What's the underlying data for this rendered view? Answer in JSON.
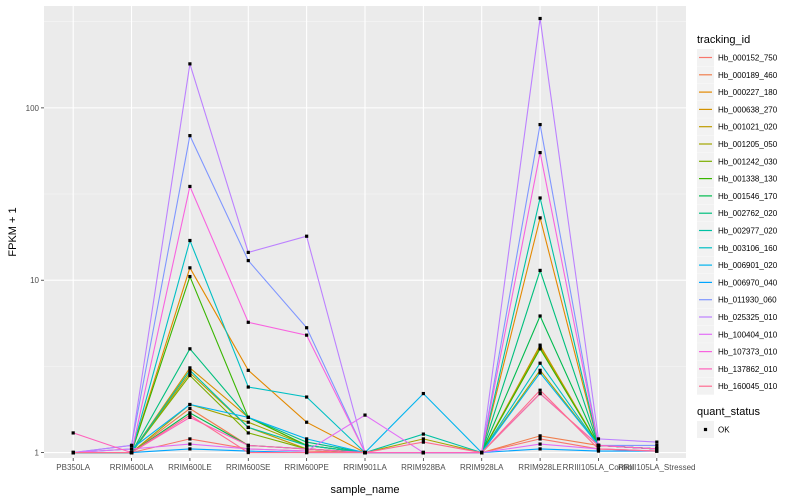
{
  "chart_data": {
    "type": "line",
    "xlabel": "sample_name",
    "ylabel": "FPKM + 1",
    "y_scale": "log10",
    "ylim": [
      0.93,
      390
    ],
    "y_ticks": [
      1,
      10,
      100
    ],
    "y_tick_labels": [
      "1",
      "10",
      "100"
    ],
    "grid": true,
    "categories": [
      "PB350LA",
      "RRIM600LA",
      "RRIM600LE",
      "RRIM600SE",
      "RRIM600PE",
      "RRIM901LA",
      "RRIM928BA",
      "RRIM928LA",
      "RRIM928LE",
      "RRIII105LA_Control",
      "RRIII105LA_Stressed"
    ],
    "legend": {
      "position": "right",
      "title": "tracking_id",
      "shape_title": "quant_status",
      "shape_label": "OK"
    },
    "series": [
      {
        "name": "Hb_000152_750",
        "color": "#F8766D",
        "values": [
          1.0,
          1.0,
          1.2,
          1.05,
          1.02,
          1.0,
          1.0,
          1.0,
          1.2,
          1.05,
          1.02
        ]
      },
      {
        "name": "Hb_000189_460",
        "color": "#F07E4E",
        "values": [
          1.0,
          1.0,
          1.8,
          1.1,
          1.05,
          1.0,
          1.0,
          1.0,
          1.25,
          1.1,
          1.05
        ]
      },
      {
        "name": "Hb_000227_180",
        "color": "#E38900",
        "values": [
          1.0,
          1.0,
          11.8,
          3.0,
          1.5,
          1.0,
          1.0,
          1.0,
          23.0,
          1.1,
          1.05
        ]
      },
      {
        "name": "Hb_000638_270",
        "color": "#D39200",
        "values": [
          1.0,
          1.0,
          3.1,
          1.6,
          1.1,
          1.0,
          1.0,
          1.0,
          4.1,
          1.1,
          1.05
        ]
      },
      {
        "name": "Hb_001021_020",
        "color": "#BE9C00",
        "values": [
          1.0,
          1.0,
          2.9,
          1.4,
          1.05,
          1.0,
          1.0,
          1.0,
          4.2,
          1.1,
          1.05
        ]
      },
      {
        "name": "Hb_001205_050",
        "color": "#A3A500",
        "values": [
          1.0,
          1.0,
          1.9,
          1.5,
          1.1,
          1.0,
          1.2,
          1.0,
          3.0,
          1.1,
          1.05
        ]
      },
      {
        "name": "Hb_001242_030",
        "color": "#7CAE00",
        "values": [
          1.0,
          1.0,
          2.8,
          1.3,
          1.05,
          1.0,
          1.0,
          1.0,
          2.2,
          1.1,
          1.05
        ]
      },
      {
        "name": "Hb_001338_130",
        "color": "#39B600",
        "values": [
          1.0,
          1.0,
          10.5,
          1.6,
          1.1,
          1.0,
          1.0,
          1.0,
          4.0,
          1.1,
          1.05
        ]
      },
      {
        "name": "Hb_001546_170",
        "color": "#00BB4E",
        "values": [
          1.0,
          1.0,
          1.7,
          1.1,
          1.05,
          1.0,
          1.0,
          1.0,
          6.2,
          1.1,
          1.05
        ]
      },
      {
        "name": "Hb_002762_020",
        "color": "#00BF7D",
        "values": [
          1.0,
          1.0,
          4.0,
          1.6,
          1.15,
          1.0,
          1.0,
          1.0,
          11.4,
          1.1,
          1.05
        ]
      },
      {
        "name": "Hb_002977_020",
        "color": "#00C1A3",
        "values": [
          1.0,
          1.0,
          3.0,
          1.4,
          1.1,
          1.0,
          1.28,
          1.0,
          30.0,
          1.1,
          1.05
        ]
      },
      {
        "name": "Hb_003106_160",
        "color": "#00BFC4",
        "values": [
          1.0,
          1.0,
          17.0,
          2.4,
          2.1,
          1.0,
          1.0,
          1.0,
          3.3,
          1.1,
          1.05
        ]
      },
      {
        "name": "Hb_006901_020",
        "color": "#00B4EF",
        "values": [
          1.0,
          1.05,
          1.9,
          1.6,
          1.2,
          1.0,
          2.2,
          1.0,
          2.9,
          1.1,
          1.05
        ]
      },
      {
        "name": "Hb_006970_040",
        "color": "#00A5FF",
        "values": [
          1.0,
          1.0,
          1.05,
          1.02,
          1.0,
          1.0,
          1.0,
          1.0,
          1.05,
          1.02,
          1.02
        ]
      },
      {
        "name": "Hb_011930_060",
        "color": "#7F96FF",
        "values": [
          1.0,
          1.1,
          69.0,
          13.0,
          5.3,
          1.0,
          1.0,
          1.0,
          80.0,
          1.1,
          1.1
        ]
      },
      {
        "name": "Hb_025325_010",
        "color": "#BC81FF",
        "values": [
          1.0,
          1.1,
          180.0,
          14.5,
          18.0,
          1.0,
          1.0,
          1.0,
          330.0,
          1.2,
          1.15
        ]
      },
      {
        "name": "Hb_100404_010",
        "color": "#E26EF7",
        "values": [
          1.0,
          1.05,
          1.12,
          1.05,
          1.02,
          1.65,
          1.0,
          1.0,
          1.12,
          1.05,
          1.02
        ]
      },
      {
        "name": "Hb_107373_010",
        "color": "#F863DF",
        "values": [
          1.0,
          1.0,
          35.0,
          5.7,
          4.8,
          1.0,
          1.0,
          1.0,
          55.0,
          1.1,
          1.05
        ]
      },
      {
        "name": "Hb_137862_010",
        "color": "#FF62BC",
        "values": [
          1.3,
          1.0,
          1.6,
          1.1,
          1.05,
          1.0,
          1.0,
          1.0,
          2.2,
          1.1,
          1.05
        ]
      },
      {
        "name": "Hb_160045_010",
        "color": "#FF6C91",
        "values": [
          1.0,
          1.0,
          1.65,
          1.0,
          1.0,
          1.0,
          1.15,
          1.0,
          2.3,
          1.05,
          1.02
        ]
      }
    ]
  }
}
